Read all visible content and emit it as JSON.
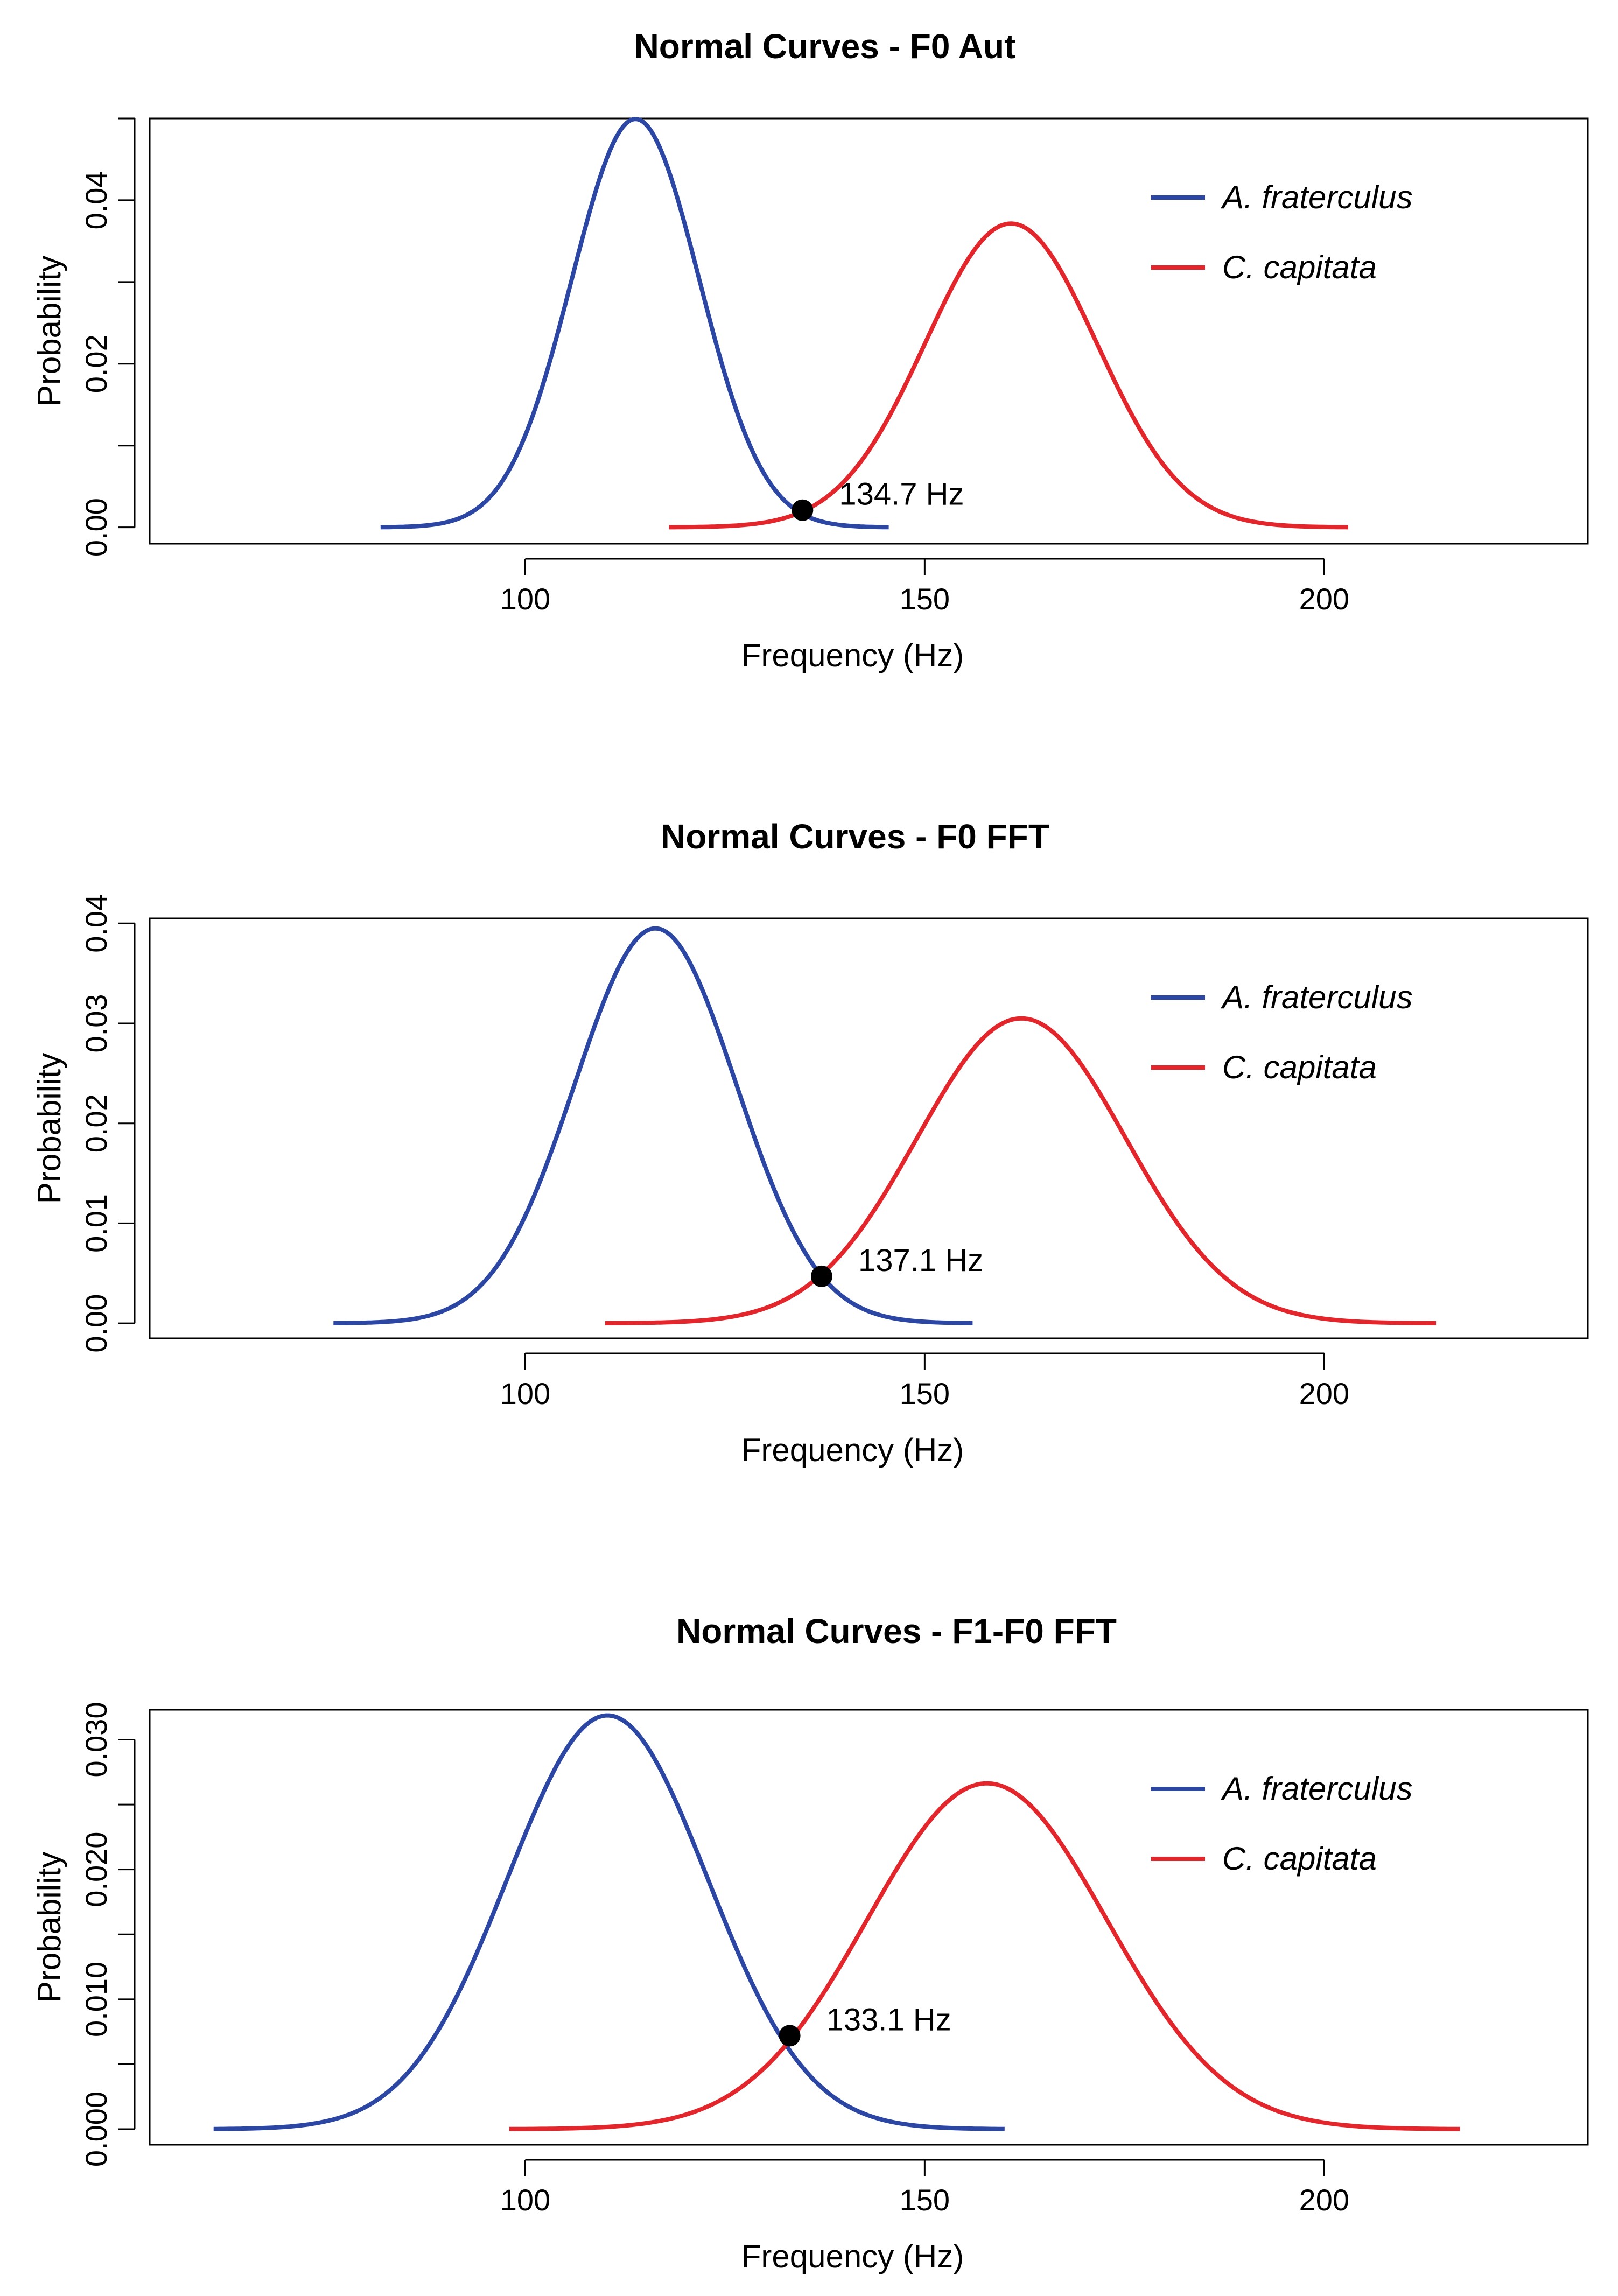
{
  "figure": {
    "colors": {
      "A_fraterculus": "#2b46a3",
      "C_capitata": "#e3262b",
      "axis": "#000000",
      "point": "#000000"
    },
    "legend_position": "top-right"
  },
  "chart_data": [
    {
      "type": "line",
      "title": "Normal Curves - F0 Aut",
      "xlabel": "Frequency (Hz)",
      "ylabel": "Probability",
      "xlim": [
        53,
        233
      ],
      "ylim": [
        -0.002,
        0.05
      ],
      "xticks": [
        100,
        150,
        200
      ],
      "xtick_labels": [
        "100",
        "150",
        "200"
      ],
      "yticks": [
        0,
        0.01,
        0.02,
        0.03,
        0.04,
        0.05
      ],
      "ytick_labels": [
        "0.00",
        "",
        "0.02",
        "",
        "0.04",
        ""
      ],
      "series": [
        {
          "name": "A. fraterculus",
          "color": "#2b46a3",
          "mean": 113.8,
          "sd": 7.99,
          "x_range": [
            81.9,
            145.5
          ]
        },
        {
          "name": "C. capitata",
          "color": "#e3262b",
          "mean": 160.8,
          "sd": 10.74,
          "x_range": [
            118,
            203
          ]
        }
      ],
      "intersection": {
        "x": 134.7,
        "y": 0.0021,
        "label": "134.7 Hz"
      }
    },
    {
      "type": "line",
      "title": "Normal Curves - F0 FFT",
      "xlabel": "Frequency (Hz)",
      "ylabel": "Probability",
      "xlim": [
        53,
        233
      ],
      "ylim": [
        -0.0015,
        0.0405
      ],
      "xticks": [
        100,
        150,
        200
      ],
      "xtick_labels": [
        "100",
        "150",
        "200"
      ],
      "yticks": [
        0,
        0.01,
        0.02,
        0.03,
        0.04
      ],
      "ytick_labels": [
        "0.00",
        "0.01",
        "0.02",
        "0.03",
        "0.04"
      ],
      "series": [
        {
          "name": "A. fraterculus",
          "color": "#2b46a3",
          "mean": 116.3,
          "sd": 10.1,
          "x_range": [
            76,
            156
          ]
        },
        {
          "name": "C. capitata",
          "color": "#e3262b",
          "mean": 162.1,
          "sd": 13.08,
          "x_range": [
            110,
            214
          ]
        }
      ],
      "intersection": {
        "x": 137.1,
        "y": 0.0047,
        "label": "137.1 Hz"
      }
    },
    {
      "type": "line",
      "title": "Normal Curves - F1-F0 FFT",
      "xlabel": "Frequency (Hz)",
      "ylabel": "Probability",
      "xlim": [
        53,
        233
      ],
      "ylim": [
        -0.0012,
        0.0323
      ],
      "xticks": [
        100,
        150,
        200
      ],
      "xtick_labels": [
        "100",
        "150",
        "200"
      ],
      "yticks": [
        0,
        0.005,
        0.01,
        0.015,
        0.02,
        0.025,
        0.03
      ],
      "ytick_labels": [
        "0.000",
        "",
        "0.010",
        "",
        "0.020",
        "",
        "0.030"
      ],
      "series": [
        {
          "name": "A. fraterculus",
          "color": "#2b46a3",
          "mean": 110.3,
          "sd": 12.52,
          "x_range": [
            61,
            160
          ]
        },
        {
          "name": "C. capitata",
          "color": "#e3262b",
          "mean": 157.8,
          "sd": 14.98,
          "x_range": [
            98,
            217
          ]
        }
      ],
      "intersection": {
        "x": 133.1,
        "y": 0.0072,
        "label": "133.1 Hz"
      }
    }
  ]
}
